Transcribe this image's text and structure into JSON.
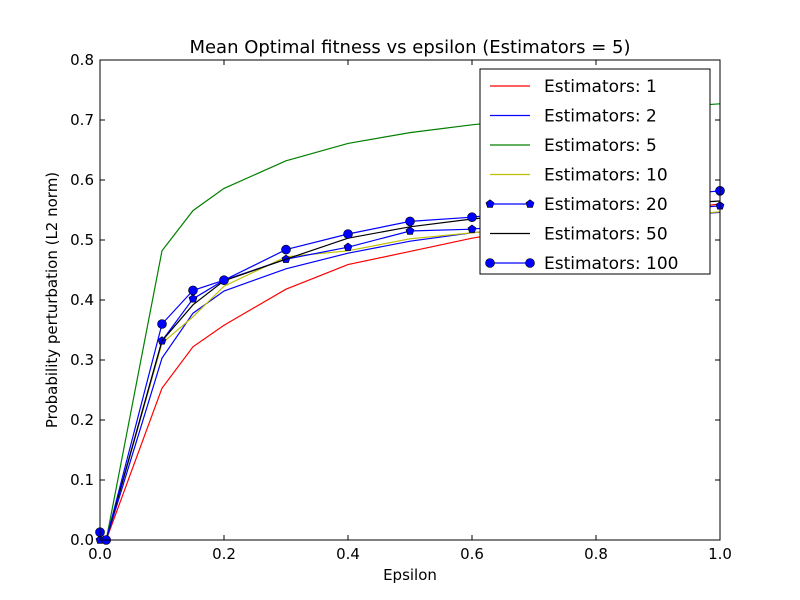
{
  "chart_data": {
    "type": "line",
    "title": "Mean Optimal fitness vs epsilon (Estimators = 5)",
    "xlabel": "Epsilon",
    "ylabel": "Probability perturbation (L2 norm)",
    "xlim": [
      0.0,
      1.0
    ],
    "ylim": [
      0.0,
      0.8
    ],
    "xticks": [
      "0.0",
      "0.2",
      "0.4",
      "0.6",
      "0.8",
      "1.0"
    ],
    "yticks": [
      "0.0",
      "0.1",
      "0.2",
      "0.3",
      "0.4",
      "0.5",
      "0.6",
      "0.7",
      "0.8"
    ],
    "grid": false,
    "legend_position": "top-right",
    "x": [
      0.0,
      0.01,
      0.1,
      0.15,
      0.2,
      0.3,
      0.4,
      0.5,
      0.6,
      0.7,
      0.8,
      0.9,
      1.0
    ],
    "series": [
      {
        "name": "Estimators: 1",
        "color": "#ff0000",
        "marker": "none",
        "values": [
          0.0,
          0.0,
          0.253,
          0.322,
          0.358,
          0.418,
          0.459,
          0.481,
          0.503,
          0.52,
          0.535,
          0.548,
          0.56
        ]
      },
      {
        "name": "Estimators: 2",
        "color": "#0000ff",
        "marker": "none",
        "values": [
          0.0,
          0.0,
          0.303,
          0.378,
          0.415,
          0.452,
          0.478,
          0.498,
          0.512,
          0.523,
          0.532,
          0.54,
          0.546
        ]
      },
      {
        "name": "Estimators: 5",
        "color": "#008000",
        "marker": "none",
        "values": [
          0.0,
          0.0,
          0.482,
          0.549,
          0.586,
          0.632,
          0.661,
          0.679,
          0.692,
          0.703,
          0.712,
          0.72,
          0.727
        ]
      },
      {
        "name": "Estimators: 10",
        "color": "#bfbf00",
        "marker": "none",
        "values": [
          0.0,
          0.0,
          0.328,
          0.372,
          0.423,
          0.472,
          0.482,
          0.502,
          0.512,
          0.522,
          0.531,
          0.539,
          0.547
        ]
      },
      {
        "name": "Estimators: 20",
        "color": "#0000ff",
        "marker": "pentagon",
        "values": [
          0.0,
          0.0,
          0.332,
          0.402,
          0.433,
          0.468,
          0.488,
          0.515,
          0.518,
          0.528,
          0.538,
          0.548,
          0.557
        ]
      },
      {
        "name": "Estimators: 50",
        "color": "#000000",
        "marker": "none",
        "values": [
          0.0,
          0.0,
          0.332,
          0.392,
          0.432,
          0.468,
          0.503,
          0.522,
          0.535,
          0.545,
          0.552,
          0.559,
          0.565
        ]
      },
      {
        "name": "Estimators: 100",
        "color": "#0000ff",
        "marker": "circle",
        "values": [
          0.013,
          0.0,
          0.36,
          0.416,
          0.433,
          0.484,
          0.51,
          0.531,
          0.538,
          0.55,
          0.561,
          0.572,
          0.582
        ]
      }
    ]
  }
}
